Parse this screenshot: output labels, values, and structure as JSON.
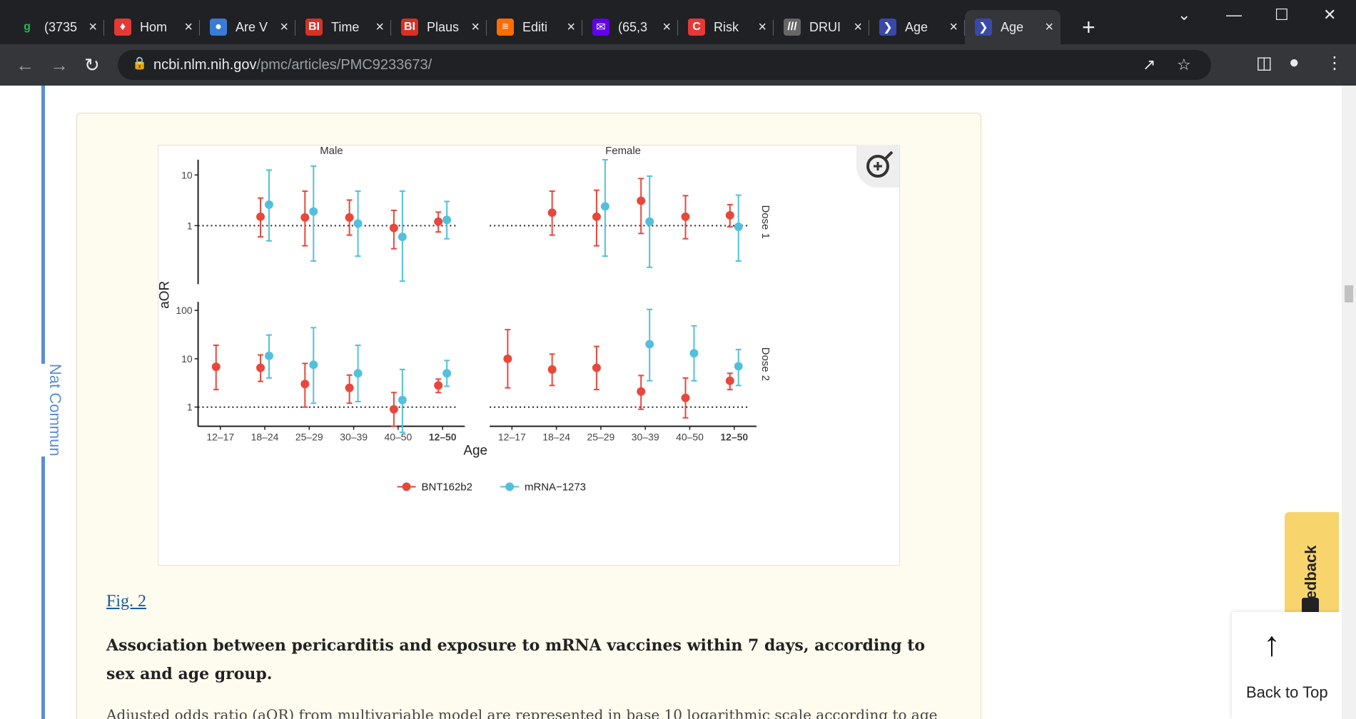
{
  "browser": {
    "tabs": [
      {
        "title": "(3735",
        "favicon": "g",
        "color": "#1db954",
        "fg": "#1db954",
        "active": false
      },
      {
        "title": "Hom",
        "favicon": "♦",
        "color": "#e53935",
        "fg": "#fff",
        "active": false
      },
      {
        "title": "Are V",
        "favicon": "●",
        "color": "#3a7bd5",
        "fg": "#fff",
        "active": false
      },
      {
        "title": "Time",
        "favicon": "BI",
        "color": "#d93025",
        "fg": "#fff",
        "active": false
      },
      {
        "title": "Plaus",
        "favicon": "BI",
        "color": "#d93025",
        "fg": "#fff",
        "active": false
      },
      {
        "title": "Editi",
        "favicon": "≡",
        "color": "#ff6d00",
        "fg": "#fff",
        "active": false
      },
      {
        "title": "(65,3",
        "favicon": "✉",
        "color": "#6200ea",
        "fg": "#fff",
        "active": false
      },
      {
        "title": "Risk",
        "favicon": "C",
        "color": "#e53935",
        "fg": "#fff",
        "active": false
      },
      {
        "title": "DRUI",
        "favicon": "///",
        "color": "#666",
        "fg": "#fff",
        "active": false
      },
      {
        "title": "Age",
        "favicon": "❯",
        "color": "#3949ab",
        "fg": "#fff",
        "active": false
      },
      {
        "title": "Age",
        "favicon": "❯",
        "color": "#3949ab",
        "fg": "#fff",
        "active": true
      }
    ],
    "new_tab": "+",
    "url_host": "ncbi.nlm.nih.gov",
    "url_path": "/pmc/articles/PMC9233673/"
  },
  "sidebar": {
    "journal": "Nat Commun"
  },
  "figure": {
    "link": "Fig. 2",
    "title": "Association between pericarditis and exposure to mRNA vaccines within 7 days, according to sex and age group.",
    "body": "Adjusted odds ratio (aOR) from multivariable model are represented in base 10 logarithmic scale according to age"
  },
  "buttons": {
    "feedback": "Feedback",
    "back_to_top": "Back to Top"
  },
  "chart_data": {
    "type": "scatter",
    "style": "forest",
    "ylabel": "aOR",
    "xlabel": "Age",
    "categories": [
      "12–17",
      "18–24",
      "25–29",
      "30–39",
      "40–50",
      "12–50"
    ],
    "facets": [
      "Male",
      "Female"
    ],
    "rows": [
      "Dose 1",
      "Dose 2"
    ],
    "yticks": {
      "Dose 1": [
        "10",
        "1"
      ],
      "Dose 2": [
        "100",
        "10",
        "1"
      ]
    },
    "legend": [
      "BNT162b2",
      "mRNA−1273"
    ],
    "colors": {
      "BNT162b2": "#e8473b",
      "mRNA−1273": "#52c0dc"
    },
    "panels": [
      {
        "row": "Dose 1",
        "facet": "Male",
        "ylim": [
          0.07,
          20
        ],
        "BNT162b2": [
          null,
          [
            1.5,
            0.6,
            3.5
          ],
          [
            1.45,
            0.4,
            4.8
          ],
          [
            1.45,
            0.65,
            3.2
          ],
          [
            0.9,
            0.35,
            2.0
          ],
          [
            1.2,
            0.75,
            1.85
          ]
        ],
        "mRNA−1273": [
          null,
          [
            2.6,
            0.5,
            12.5
          ],
          [
            1.9,
            0.2,
            15.0
          ],
          [
            1.1,
            0.25,
            4.8
          ],
          [
            0.6,
            0.08,
            4.8
          ],
          [
            1.3,
            0.55,
            3.0
          ]
        ]
      },
      {
        "row": "Dose 1",
        "facet": "Female",
        "ylim": [
          0.07,
          20
        ],
        "BNT162b2": [
          null,
          [
            1.8,
            0.65,
            4.8
          ],
          [
            1.5,
            0.4,
            5.0
          ],
          [
            3.1,
            0.7,
            8.5
          ],
          [
            1.5,
            0.55,
            3.9
          ],
          [
            1.6,
            0.95,
            2.6
          ]
        ],
        "mRNA−1273": [
          null,
          null,
          [
            2.4,
            0.25,
            20.0
          ],
          [
            1.2,
            0.15,
            9.5
          ],
          null,
          [
            0.95,
            0.2,
            4.0
          ]
        ]
      },
      {
        "row": "Dose 2",
        "facet": "Male",
        "ylim": [
          0.4,
          150
        ],
        "BNT162b2": [
          [
            6.8,
            2.3,
            19.0
          ],
          [
            6.5,
            3.4,
            12.0
          ],
          [
            3.0,
            1.0,
            8.0
          ],
          [
            2.5,
            1.2,
            4.6
          ],
          [
            0.9,
            0.4,
            2.0
          ],
          [
            2.8,
            2.0,
            3.8
          ]
        ],
        "mRNA−1273": [
          null,
          [
            11.5,
            4.0,
            31.0
          ],
          [
            7.5,
            1.2,
            44.0
          ],
          [
            5.0,
            1.3,
            19.0
          ],
          [
            1.4,
            0.3,
            6.0
          ],
          [
            5.0,
            2.7,
            9.2
          ]
        ]
      },
      {
        "row": "Dose 2",
        "facet": "Female",
        "ylim": [
          0.4,
          150
        ],
        "BNT162b2": [
          [
            10.0,
            2.5,
            40.0
          ],
          [
            6.0,
            2.8,
            12.5
          ],
          [
            6.5,
            2.3,
            18.0
          ],
          [
            2.1,
            0.9,
            4.5
          ],
          [
            1.55,
            0.6,
            4.0
          ],
          [
            3.5,
            2.3,
            5.0
          ]
        ],
        "mRNA−1273": [
          null,
          null,
          null,
          [
            20.0,
            3.5,
            105.0
          ],
          [
            13.0,
            3.5,
            48.0
          ],
          [
            7.0,
            2.8,
            15.5
          ]
        ]
      }
    ]
  }
}
